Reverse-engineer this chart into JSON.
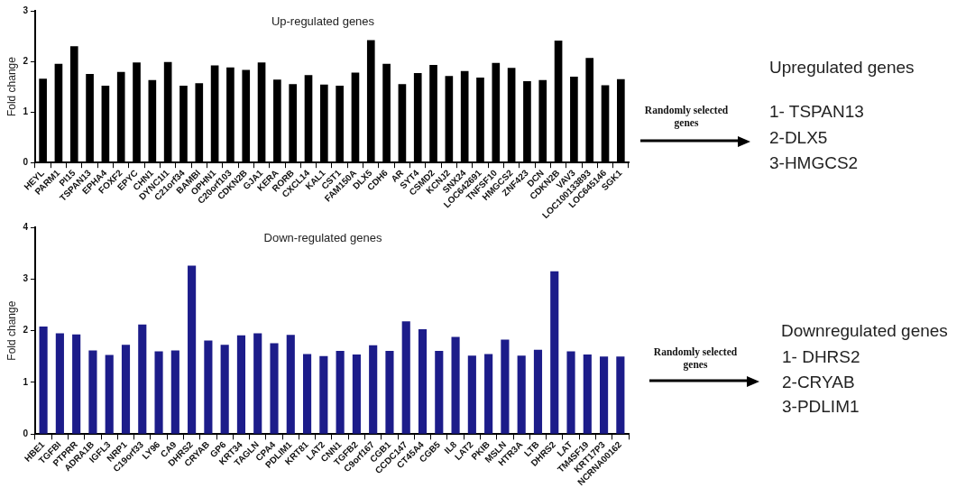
{
  "chart_data": [
    {
      "type": "bar",
      "title": "Up-regulated genes",
      "ylabel": "Fold change",
      "categories": [
        "HEYL",
        "PARM1",
        "PI15",
        "TSPAN13",
        "EPHA4",
        "FOXF2",
        "EPYC",
        "CHN1",
        "DYNC1I1",
        "C21orf34",
        "BAMBI",
        "OPHN1",
        "C20orf103",
        "CDKN2B",
        "GJA1",
        "KERA",
        "RORB",
        "CXCL14",
        "KAL1",
        "CST1",
        "FAM150A",
        "DLX5",
        "CDH6",
        "AR",
        "SYT4",
        "CSMD2",
        "KCNJ2",
        "SNX24",
        "LOC642691",
        "TNFSF10",
        "HMGCS2",
        "ZNF423",
        "DCN",
        "CDKN2B",
        "VAV3",
        "LOC100133893",
        "LOC645146",
        "SGK1"
      ],
      "values": [
        1.66,
        1.95,
        2.3,
        1.75,
        1.52,
        1.79,
        1.98,
        1.63,
        1.99,
        1.52,
        1.57,
        1.92,
        1.88,
        1.83,
        1.98,
        1.64,
        1.55,
        1.73,
        1.54,
        1.52,
        1.78,
        2.42,
        1.95,
        1.55,
        1.77,
        1.93,
        1.71,
        1.81,
        1.68,
        1.97,
        1.87,
        1.61,
        1.63,
        2.41,
        1.7,
        2.07,
        1.53,
        1.65
      ],
      "color": "#000000",
      "ylim": [
        0,
        3
      ],
      "yticks": [
        0,
        1,
        2,
        3
      ],
      "grid": false
    },
    {
      "type": "other",
      "title": "Upregulated genes",
      "annotations": [
        "Randomly selected genes",
        "1- TSPAN13",
        "2-DLX5",
        "3-HMGCS2"
      ]
    },
    {
      "type": "bar",
      "title": "Down-regulated genes",
      "ylabel": "Fold change",
      "categories": [
        "HBE1",
        "TGFBI",
        "PTPRR",
        "ADRA1B",
        "IGFL3",
        "NRP1",
        "C19orf33",
        "LY96",
        "CA9",
        "DHRS2",
        "CRYAB",
        "GP6",
        "KRT34",
        "TAGLN",
        "CPA4",
        "PDLIM1",
        "KRT81",
        "LAT2",
        "CNN1",
        "TGFB2",
        "C9orf167",
        "CGB1",
        "CCDC147",
        "CT45A4",
        "CGB5",
        "IL8",
        "LAT2",
        "PKIB",
        "MSLN",
        "HTR3A",
        "LTB",
        "DHRS2",
        "LAT",
        "TM4SF19",
        "KRT17P3",
        "NCRNA00162"
      ],
      "values": [
        2.08,
        1.95,
        1.93,
        1.62,
        1.53,
        1.73,
        2.12,
        1.6,
        1.62,
        3.26,
        1.81,
        1.73,
        1.91,
        1.95,
        1.76,
        1.92,
        1.55,
        1.51,
        1.61,
        1.54,
        1.72,
        1.61,
        2.18,
        2.03,
        1.61,
        1.88,
        1.52,
        1.55,
        1.83,
        1.52,
        1.63,
        3.15,
        1.6,
        1.54,
        1.5,
        1.5
      ],
      "color": "#1c1c8a",
      "ylim": [
        0,
        4
      ],
      "yticks": [
        0,
        1,
        2,
        3,
        4
      ],
      "grid": false
    },
    {
      "type": "other",
      "title": "Downregulated genes",
      "annotations": [
        "Randomly selected genes",
        "1- DHRS2",
        "2-CRYAB",
        "3-PDLIM1"
      ]
    }
  ]
}
